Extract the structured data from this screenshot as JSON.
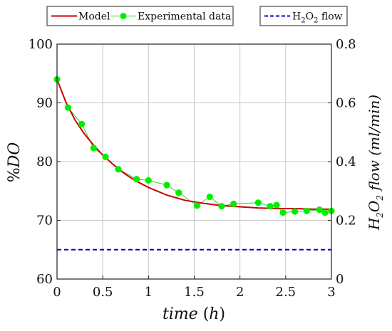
{
  "chart_data": {
    "type": "line",
    "legend": {
      "model": "Model",
      "experimental": "Experimental data",
      "flow_prefix": "H",
      "flow_sub1": "2",
      "flow_mid": "O",
      "flow_sub2": "2",
      "flow_suffix": " flow",
      "placement": "top"
    },
    "xlabel": {
      "main": "time",
      "unit": "(h)"
    },
    "ylabel_left": "%DO",
    "ylabel_right": {
      "prefix": "H",
      "sub1": "2",
      "mid": "O",
      "sub2": "2",
      "suffix": " flow (ml/min)"
    },
    "x_ticks": [
      "0",
      "0.5",
      "1",
      "1.5",
      "2",
      "2.5",
      "3"
    ],
    "y_left_ticks": [
      "60",
      "70",
      "80",
      "90",
      "100"
    ],
    "y_right_ticks": [
      "0",
      "0.2",
      "0.4",
      "0.6",
      "0.8"
    ],
    "xlim": [
      0,
      3
    ],
    "ylim_left": [
      60,
      100
    ],
    "ylim_right": [
      0,
      0.8
    ],
    "grid": true,
    "colors": {
      "model": "#cc0000",
      "experimental": "#00ee00",
      "experimental_line": "#33cc33",
      "flow": "#0000cc",
      "grid": "#c8c8c8"
    },
    "series": [
      {
        "name": "Experimental data",
        "x": [
          0,
          0.12,
          0.27,
          0.4,
          0.53,
          0.67,
          0.87,
          1.0,
          1.2,
          1.33,
          1.53,
          1.67,
          1.8,
          1.93,
          2.2,
          2.33,
          2.4,
          2.47,
          2.6,
          2.73,
          2.87,
          2.93,
          3.0
        ],
        "y": [
          94.0,
          89.2,
          86.4,
          82.3,
          80.8,
          78.7,
          77.0,
          76.8,
          76.0,
          74.7,
          72.5,
          74.0,
          72.4,
          72.8,
          73.0,
          72.4,
          72.6,
          71.3,
          71.5,
          71.6,
          71.8,
          71.3,
          71.6
        ]
      },
      {
        "name": "Model",
        "x": [
          0,
          0.1,
          0.2,
          0.3,
          0.4,
          0.5,
          0.6,
          0.7,
          0.8,
          0.9,
          1.0,
          1.2,
          1.4,
          1.6,
          1.8,
          2.0,
          2.2,
          2.4,
          2.6,
          2.8,
          3.0
        ],
        "y": [
          94.0,
          90.0,
          87.0,
          84.7,
          82.8,
          81.1,
          79.7,
          78.4,
          77.3,
          76.4,
          75.6,
          74.3,
          73.4,
          72.9,
          72.5,
          72.3,
          72.1,
          72.0,
          72.0,
          71.9,
          71.9
        ]
      },
      {
        "name": "H2O2 flow",
        "axis": "right",
        "x": [
          0,
          3
        ],
        "y": [
          0.1,
          0.1
        ]
      }
    ]
  }
}
